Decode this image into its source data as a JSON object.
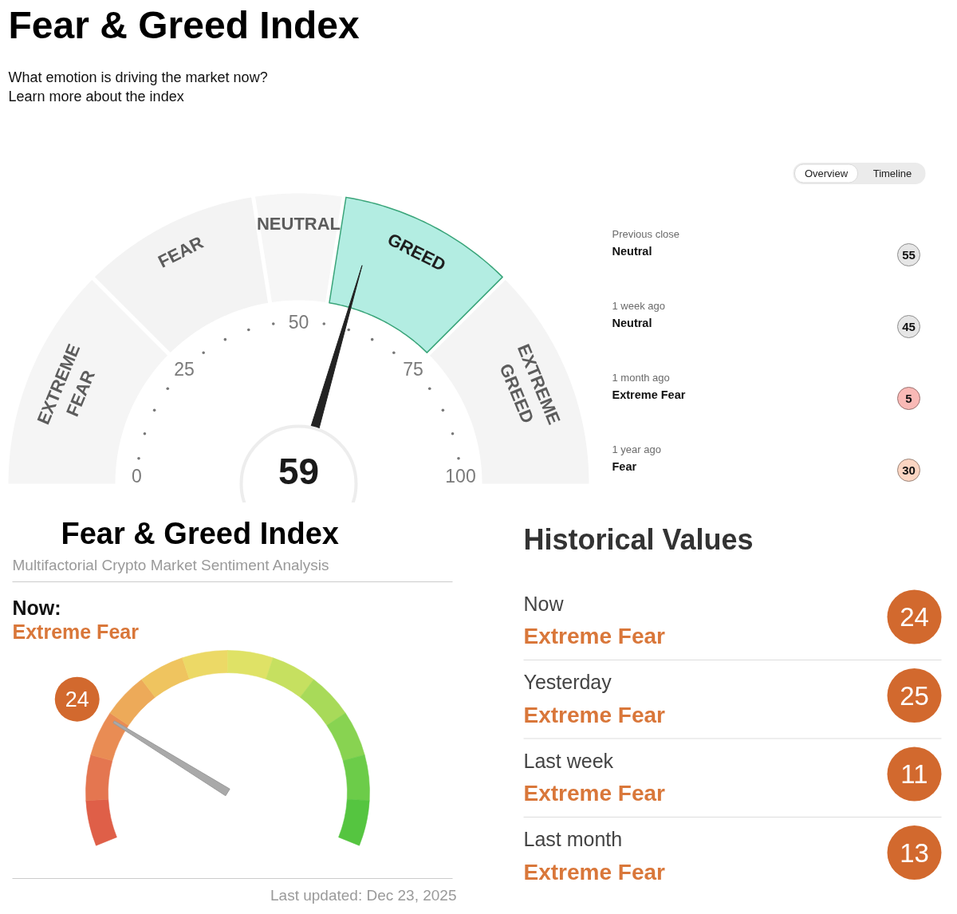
{
  "chart_data": [
    {
      "type": "donut",
      "title": "Fear & Greed Index",
      "subtitle": "What emotion is driving the market now?",
      "annotations": [
        "Learn more about the index",
        "0",
        "25",
        "50",
        "75",
        "100",
        "59"
      ],
      "categories": [
        "EXTREME FEAR",
        "FEAR",
        "NEUTRAL",
        "GREED",
        "EXTREME GREED"
      ],
      "values": [
        25,
        20,
        10,
        20,
        25
      ],
      "colors": [
        "#f5f5f5",
        "#f3f3f3",
        "#f6f6f6",
        "#b3ede2",
        "#f4f4f4"
      ],
      "needle": "GREED"
    },
    {
      "type": "other",
      "annotations": [
        "Overview",
        "Timeline",
        "Previous close",
        "Neutral",
        "1 week ago",
        "Neutral",
        "1 month ago",
        "Extreme Fear",
        "1 year ago",
        "Fear"
      ],
      "values": [
        55,
        45,
        5,
        30
      ],
      "colors": [
        "#e6e6e6",
        "#e6e6e6",
        "#f9b9b6",
        "#fbd5c2"
      ],
      "data_labels": true
    },
    {
      "type": "other",
      "title": "Fear & Greed Index",
      "subtitle": "Multifactorial Crypto Market Sentiment Analysis",
      "annotations": [
        "Now:",
        "Extreme Fear",
        "Last updated: Dec 23, 2025"
      ],
      "values": [
        24
      ],
      "data_labels": true,
      "color": "#d2692e"
    },
    {
      "type": "other",
      "title": "Historical Values",
      "annotations": [
        "Now",
        "Extreme Fear",
        "Yesterday",
        "Extreme Fear",
        "Last week",
        "Extreme Fear",
        "Last month",
        "Extreme Fear"
      ],
      "values": [
        24,
        25,
        11,
        13
      ],
      "colors": [
        "#d2692e",
        "#d2692e",
        "#d2692e",
        "#d2692e"
      ],
      "data_labels": true
    }
  ]
}
